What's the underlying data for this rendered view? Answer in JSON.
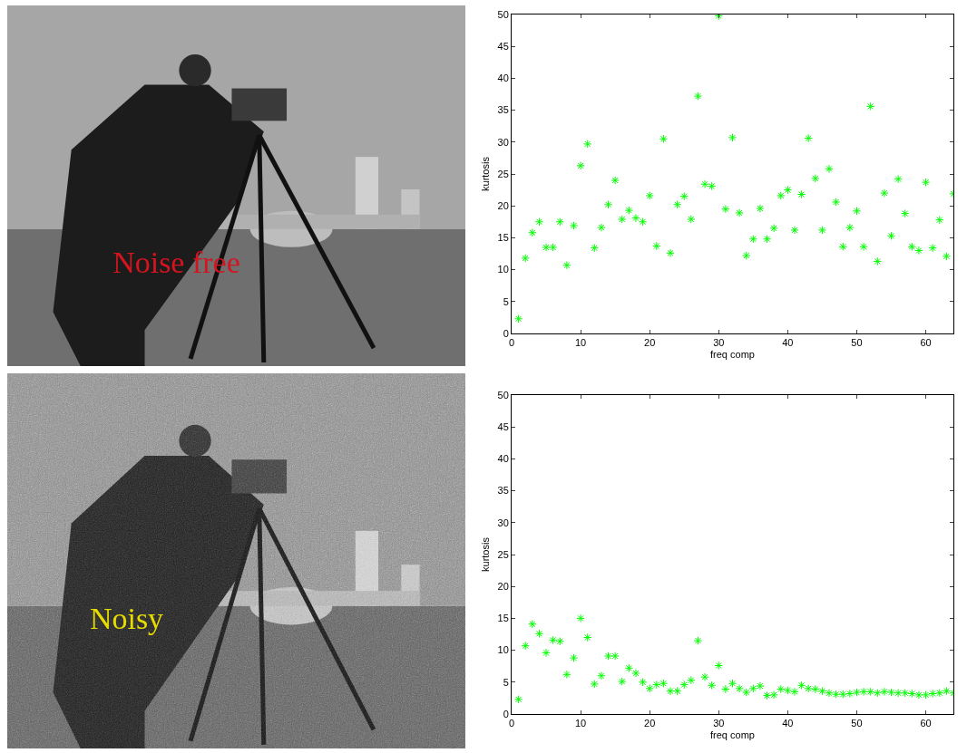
{
  "images": [
    {
      "caption": "Noise free",
      "color": "#d4141e"
    },
    {
      "caption": "Noisy",
      "color": "#e6dc00"
    }
  ],
  "chart_data": [
    {
      "type": "scatter",
      "xlabel": "freq comp",
      "ylabel": "kurtosis",
      "color": "#00ff00",
      "marker": "asterisk",
      "xlim": [
        0,
        64
      ],
      "ylim": [
        0,
        50
      ],
      "xticks": [
        0,
        10,
        20,
        30,
        40,
        50,
        60
      ],
      "yticks": [
        0,
        5,
        10,
        15,
        20,
        25,
        30,
        35,
        40,
        45,
        50
      ],
      "x": [
        1,
        2,
        3,
        4,
        5,
        6,
        7,
        8,
        9,
        10,
        11,
        12,
        13,
        14,
        15,
        16,
        17,
        18,
        19,
        20,
        21,
        22,
        23,
        24,
        25,
        26,
        27,
        28,
        29,
        30,
        31,
        32,
        33,
        34,
        35,
        36,
        37,
        38,
        39,
        40,
        41,
        42,
        43,
        44,
        45,
        46,
        47,
        48,
        49,
        50,
        51,
        52,
        53,
        54,
        55,
        56,
        57,
        58,
        59,
        60,
        61,
        62,
        63,
        64
      ],
      "values": [
        2.3,
        11.8,
        15.8,
        17.5,
        13.5,
        13.5,
        17.5,
        10.7,
        16.9,
        26.3,
        29.7,
        13.4,
        16.6,
        20.2,
        24.0,
        17.9,
        19.3,
        18.1,
        17.5,
        21.6,
        13.7,
        30.5,
        12.6,
        20.2,
        21.5,
        17.9,
        37.2,
        23.4,
        23.1,
        49.8,
        19.5,
        30.7,
        18.9,
        12.2,
        14.8,
        19.6,
        14.8,
        16.5,
        21.6,
        22.5,
        16.2,
        21.8,
        30.6,
        24.3,
        16.2,
        25.8,
        20.6,
        13.6,
        16.6,
        19.2,
        13.6,
        35.6,
        11.3,
        22.0,
        15.3,
        24.2,
        18.8,
        13.6,
        13.0,
        23.7,
        13.4,
        17.8,
        12.1,
        21.9
      ]
    },
    {
      "type": "scatter",
      "xlabel": "freq comp",
      "ylabel": "kurtosis",
      "color": "#00ff00",
      "marker": "asterisk",
      "xlim": [
        0,
        64
      ],
      "ylim": [
        0,
        50
      ],
      "xticks": [
        0,
        10,
        20,
        30,
        40,
        50,
        60
      ],
      "yticks": [
        0,
        5,
        10,
        15,
        20,
        25,
        30,
        35,
        40,
        45,
        50
      ],
      "x": [
        1,
        2,
        3,
        4,
        5,
        6,
        7,
        8,
        9,
        10,
        11,
        12,
        13,
        14,
        15,
        16,
        17,
        18,
        19,
        20,
        21,
        22,
        23,
        24,
        25,
        26,
        27,
        28,
        29,
        30,
        31,
        32,
        33,
        34,
        35,
        36,
        37,
        38,
        39,
        40,
        41,
        42,
        43,
        44,
        45,
        46,
        47,
        48,
        49,
        50,
        51,
        52,
        53,
        54,
        55,
        56,
        57,
        58,
        59,
        60,
        61,
        62,
        63,
        64
      ],
      "values": [
        2.3,
        10.7,
        14.1,
        12.6,
        9.6,
        11.6,
        11.4,
        6.2,
        8.8,
        15.0,
        12.0,
        4.7,
        6.0,
        9.1,
        9.1,
        5.1,
        7.2,
        6.4,
        5.0,
        4.0,
        4.6,
        4.8,
        3.6,
        3.6,
        4.6,
        5.3,
        11.5,
        5.8,
        4.5,
        7.6,
        3.9,
        4.8,
        4.0,
        3.4,
        4.0,
        4.4,
        2.9,
        3.0,
        3.9,
        3.7,
        3.5,
        4.5,
        4.0,
        3.9,
        3.6,
        3.3,
        3.1,
        3.1,
        3.2,
        3.4,
        3.5,
        3.5,
        3.3,
        3.5,
        3.4,
        3.3,
        3.3,
        3.2,
        3.0,
        3.0,
        3.2,
        3.3,
        3.6,
        3.3
      ]
    }
  ]
}
